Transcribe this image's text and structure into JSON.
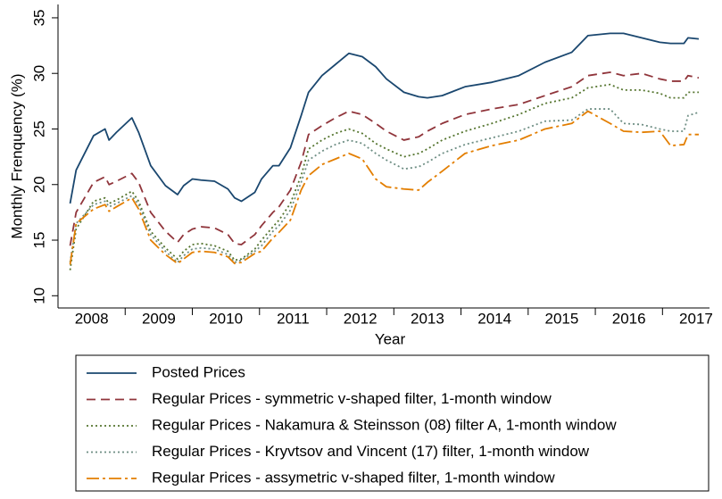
{
  "chart_data": {
    "type": "line",
    "x_label": "Year",
    "y_label": "Monthly Frenquency (%)",
    "xlim": [
      2008,
      2017.7
    ],
    "xticks": [
      {
        "value": 2008.5,
        "label": "2008"
      },
      {
        "value": 2009.5,
        "label": "2009"
      },
      {
        "value": 2010.5,
        "label": "2010"
      },
      {
        "value": 2011.5,
        "label": "2011"
      },
      {
        "value": 2012.5,
        "label": "2012"
      },
      {
        "value": 2013.5,
        "label": "2013"
      },
      {
        "value": 2014.5,
        "label": "2014"
      },
      {
        "value": 2015.5,
        "label": "2015"
      },
      {
        "value": 2016.5,
        "label": "2016"
      },
      {
        "value": 2017.5,
        "label": "2017"
      }
    ],
    "xminor_ticks": [
      2009,
      2010,
      2011,
      2012,
      2013,
      2014,
      2015,
      2016,
      2017
    ],
    "ylim": [
      8.9,
      36.2
    ],
    "yticks": [
      10,
      15,
      20,
      25,
      30,
      35
    ],
    "grid": false,
    "legend": "bottom",
    "x": [
      2008.18,
      2008.27,
      2008.53,
      2008.7,
      2008.76,
      2008.87,
      2009.1,
      2009.2,
      2009.38,
      2009.6,
      2009.78,
      2009.87,
      2010.0,
      2010.13,
      2010.33,
      2010.53,
      2010.63,
      2010.73,
      2010.93,
      2011.03,
      2011.2,
      2011.29,
      2011.46,
      2011.62,
      2011.73,
      2011.93,
      2012.13,
      2012.33,
      2012.53,
      2012.73,
      2012.89,
      2013.15,
      2013.37,
      2013.5,
      2013.72,
      2014.06,
      2014.46,
      2014.86,
      2015.25,
      2015.65,
      2015.89,
      2016.22,
      2016.42,
      2016.69,
      2016.96,
      2017.12,
      2017.32,
      2017.38,
      2017.54
    ],
    "series": [
      {
        "name": "Posted Prices",
        "color": "#1a476f",
        "dash": "solid",
        "values": [
          18.3,
          21.3,
          24.4,
          25.0,
          24.0,
          24.7,
          26.0,
          24.7,
          21.7,
          19.9,
          19.1,
          19.9,
          20.5,
          20.4,
          20.3,
          19.6,
          18.8,
          18.5,
          19.3,
          20.5,
          21.7,
          21.7,
          23.3,
          26.2,
          28.3,
          29.8,
          30.8,
          31.8,
          31.5,
          30.6,
          29.5,
          28.3,
          27.9,
          27.8,
          28.0,
          28.8,
          29.2,
          29.8,
          31.0,
          31.9,
          33.4,
          33.6,
          33.6,
          33.2,
          32.8,
          32.7,
          32.7,
          33.2,
          33.1
        ]
      },
      {
        "name": "Regular Prices - symmetric v-shaped filter, 1-month window",
        "color": "#90353b",
        "dash": "dashed",
        "values": [
          14.5,
          17.5,
          20.2,
          20.7,
          20.0,
          20.3,
          21.0,
          20.2,
          17.5,
          15.8,
          14.8,
          15.5,
          16.0,
          16.2,
          16.1,
          15.5,
          14.7,
          14.6,
          15.5,
          16.3,
          17.5,
          18.0,
          19.5,
          22.0,
          24.5,
          25.3,
          26.0,
          26.6,
          26.3,
          25.5,
          24.8,
          24.0,
          24.3,
          24.8,
          25.5,
          26.3,
          26.8,
          27.2,
          28.0,
          28.8,
          29.8,
          30.1,
          29.8,
          30.0,
          29.5,
          29.3,
          29.3,
          29.8,
          29.6
        ]
      },
      {
        "name": "Regular Prices - Nakamura & Steinsson (08) filter A, 1-month window",
        "color": "#55752f",
        "dash": "dotted",
        "values": [
          12.3,
          16.0,
          18.5,
          18.8,
          18.3,
          18.6,
          19.4,
          18.5,
          15.8,
          14.3,
          13.3,
          14.0,
          14.6,
          14.7,
          14.5,
          14.0,
          13.2,
          13.3,
          14.2,
          15.0,
          16.2,
          16.8,
          18.3,
          20.8,
          23.2,
          24.0,
          24.6,
          25.0,
          24.6,
          23.7,
          23.2,
          22.5,
          22.8,
          23.2,
          24.0,
          24.8,
          25.5,
          26.3,
          27.3,
          27.8,
          28.7,
          29.0,
          28.5,
          28.5,
          28.2,
          27.8,
          27.8,
          28.3,
          28.3
        ]
      },
      {
        "name": "Regular Prices - Kryvtsov and Vincent (17) filter, 1-month window",
        "color": "#6e8e84",
        "dash": "dotted",
        "values": [
          13.0,
          16.5,
          18.2,
          18.5,
          18.0,
          18.3,
          19.0,
          18.2,
          15.5,
          14.0,
          13.0,
          13.6,
          14.2,
          14.3,
          14.2,
          13.7,
          13.0,
          13.2,
          14.0,
          14.5,
          15.8,
          16.3,
          17.7,
          20.2,
          22.2,
          23.0,
          23.6,
          24.0,
          23.7,
          22.8,
          22.2,
          21.4,
          21.6,
          22.0,
          22.8,
          23.6,
          24.2,
          24.8,
          25.7,
          25.8,
          26.8,
          26.8,
          25.5,
          25.4,
          25.0,
          24.8,
          24.8,
          26.2,
          26.5
        ]
      },
      {
        "name": "Regular Prices - assymetric v-shaped filter, 1-month window",
        "color": "#e37e00",
        "dash": "dashdot",
        "values": [
          12.8,
          16.5,
          17.8,
          18.2,
          17.6,
          18.0,
          18.8,
          17.8,
          15.0,
          13.7,
          12.9,
          13.3,
          13.9,
          14.0,
          13.9,
          13.5,
          12.9,
          13.0,
          13.8,
          14.0,
          15.2,
          15.7,
          16.8,
          19.5,
          20.8,
          21.8,
          22.3,
          22.8,
          22.3,
          20.5,
          19.8,
          19.6,
          19.5,
          20.2,
          21.2,
          22.8,
          23.5,
          24.0,
          25.0,
          25.5,
          26.6,
          25.5,
          24.8,
          24.7,
          24.8,
          23.5,
          23.6,
          24.5,
          24.5
        ]
      }
    ]
  }
}
